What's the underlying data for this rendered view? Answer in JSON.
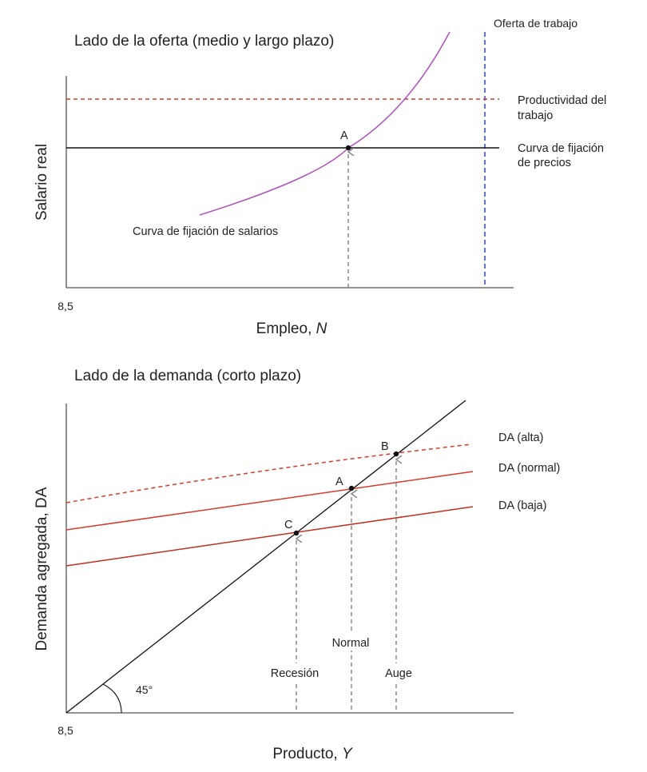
{
  "supply_panel": {
    "title": "Lado de la oferta (medio y largo plazo)",
    "y_axis_label": "Salario real",
    "x_axis_label_text": "Empleo, ",
    "x_axis_label_var": "N",
    "origin_label": "8,5",
    "labor_supply_label": "Oferta de trabajo",
    "productivity_label_line1": "Productividad del",
    "productivity_label_line2": "trabajo",
    "price_setting_label_line1": "Curva de fijación",
    "price_setting_label_line2": "de precios",
    "wage_setting_label": "Curva de fijación de salarios",
    "point_label": "A"
  },
  "demand_panel": {
    "title": "Lado de la demanda (corto plazo)",
    "y_axis_label": "Demanda agregada, DA",
    "x_axis_label_text": "Producto, ",
    "x_axis_label_var": "Y",
    "origin_label": "8,5",
    "angle_label": "45°",
    "da_high_label": "DA (alta)",
    "da_normal_label": "DA (normal)",
    "da_low_label": "DA (baja)",
    "point_b": "B",
    "point_a": "A",
    "point_c": "C",
    "recession_label": "Recesión",
    "normal_label": "Normal",
    "boom_label": "Auge"
  },
  "colors": {
    "axis": "#555555",
    "black": "#111111",
    "red": "#d63b2a",
    "purple": "#b04fc0",
    "blue": "#2f47b8",
    "grey_arrow": "#8a8a8a"
  }
}
